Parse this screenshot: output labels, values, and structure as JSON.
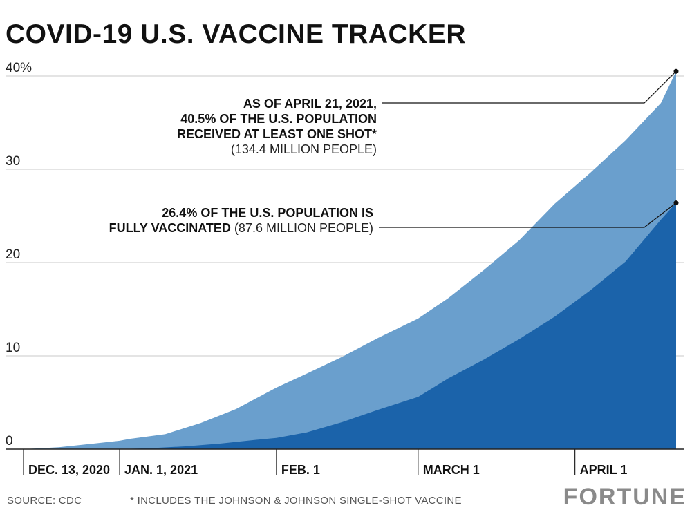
{
  "title": "COVID-19 U.S. VACCINE TRACKER",
  "footer": {
    "source": "SOURCE: CDC",
    "footnote": "* INCLUDES THE JOHNSON & JOHNSON SINGLE-SHOT VACCINE",
    "logo": "FORTUNE"
  },
  "colors": {
    "at_least_one": "#6a9fcd",
    "fully": "#1b63aa",
    "grid": "#c8c8c8"
  },
  "annotations": {
    "at_least_one": {
      "lines": [
        [
          {
            "text": "AS OF APRIL 21, 2021,",
            "bold": true
          }
        ],
        [
          {
            "text": "40.5% OF THE U.S. POPULATION",
            "bold": true
          }
        ],
        [
          {
            "text": "RECEIVED AT LEAST ONE SHOT*",
            "bold": true
          }
        ],
        [
          {
            "text": "(134.4 MILLION PEOPLE)",
            "bold": false
          }
        ]
      ]
    },
    "fully": {
      "lines": [
        [
          {
            "text": "26.4% OF THE U.S. POPULATION IS",
            "bold": true
          }
        ],
        [
          {
            "text": "FULLY VACCINATED",
            "bold": true
          },
          {
            "text": " (87.6 MILLION PEOPLE)",
            "bold": false
          }
        ]
      ]
    }
  },
  "chart_data": {
    "type": "area",
    "title": "COVID-19 U.S. VACCINE TRACKER",
    "xlabel": "",
    "ylabel": "",
    "ylim": [
      0,
      40
    ],
    "yticks": [
      0,
      10,
      20,
      30,
      40
    ],
    "ytick_labels": [
      "0",
      "10",
      "20",
      "30",
      "40%"
    ],
    "xticks": [
      {
        "date": "2020-12-13",
        "label": "DEC. 13, 2020"
      },
      {
        "date": "2021-01-01",
        "label": "JAN. 1, 2021"
      },
      {
        "date": "2021-02-01",
        "label": "FEB. 1"
      },
      {
        "date": "2021-03-01",
        "label": "MARCH 1"
      },
      {
        "date": "2021-04-01",
        "label": "APRIL 1"
      }
    ],
    "xlim": [
      "2020-12-13",
      "2021-04-21"
    ],
    "grid": true,
    "series": [
      {
        "name": "Received at least one shot",
        "color": "#6a9fcd",
        "points": [
          [
            "2020-12-13",
            0
          ],
          [
            "2020-12-20",
            0.2
          ],
          [
            "2020-12-27",
            0.6
          ],
          [
            "2021-01-01",
            0.9
          ],
          [
            "2021-01-03",
            1.1
          ],
          [
            "2021-01-10",
            1.6
          ],
          [
            "2021-01-17",
            2.8
          ],
          [
            "2021-01-24",
            4.3
          ],
          [
            "2021-02-01",
            6.6
          ],
          [
            "2021-02-07",
            8.1
          ],
          [
            "2021-02-14",
            9.9
          ],
          [
            "2021-02-21",
            11.9
          ],
          [
            "2021-03-01",
            14.0
          ],
          [
            "2021-03-07",
            16.2
          ],
          [
            "2021-03-14",
            19.2
          ],
          [
            "2021-03-21",
            22.4
          ],
          [
            "2021-03-28",
            26.3
          ],
          [
            "2021-04-04",
            29.6
          ],
          [
            "2021-04-11",
            33.1
          ],
          [
            "2021-04-18",
            37.1
          ],
          [
            "2021-04-21",
            40.5
          ]
        ]
      },
      {
        "name": "Fully vaccinated",
        "color": "#1b63aa",
        "points": [
          [
            "2020-12-13",
            0
          ],
          [
            "2021-01-01",
            0
          ],
          [
            "2021-01-07",
            0.1
          ],
          [
            "2021-01-14",
            0.3
          ],
          [
            "2021-01-21",
            0.6
          ],
          [
            "2021-01-28",
            1.0
          ],
          [
            "2021-02-01",
            1.2
          ],
          [
            "2021-02-07",
            1.8
          ],
          [
            "2021-02-14",
            2.9
          ],
          [
            "2021-02-21",
            4.2
          ],
          [
            "2021-03-01",
            5.6
          ],
          [
            "2021-03-07",
            7.6
          ],
          [
            "2021-03-14",
            9.6
          ],
          [
            "2021-03-21",
            11.8
          ],
          [
            "2021-03-28",
            14.2
          ],
          [
            "2021-04-04",
            17.0
          ],
          [
            "2021-04-11",
            20.1
          ],
          [
            "2021-04-18",
            24.6
          ],
          [
            "2021-04-21",
            26.4
          ]
        ]
      }
    ]
  }
}
